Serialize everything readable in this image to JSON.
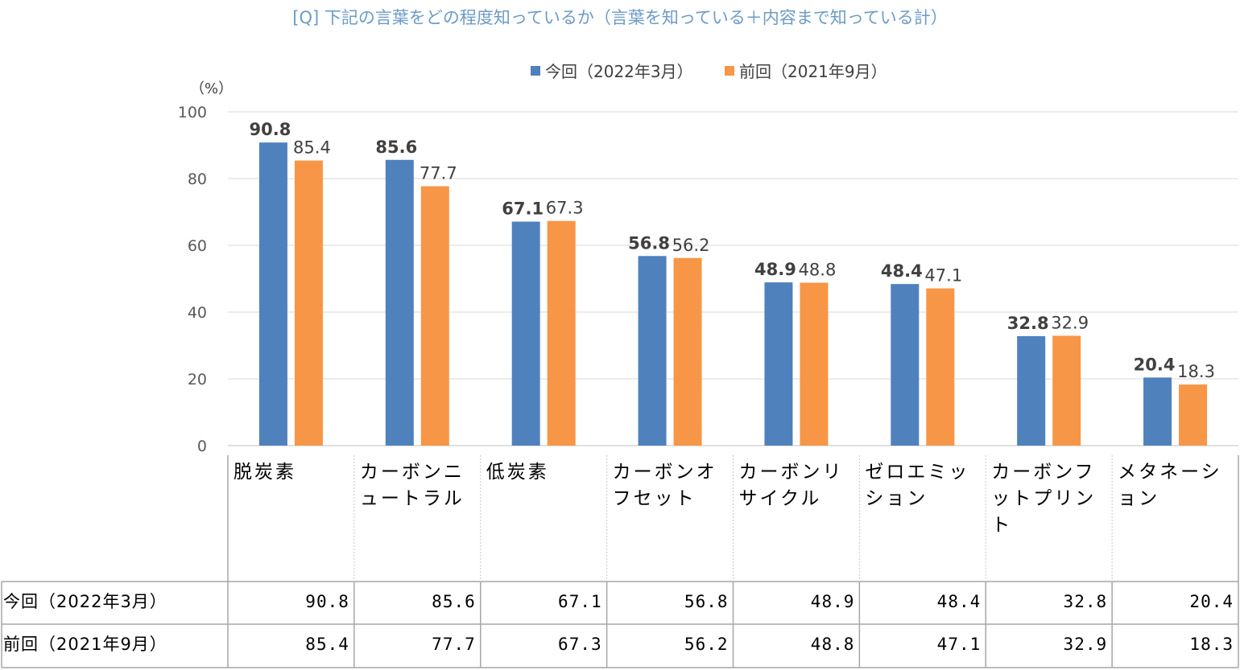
{
  "chart_data": {
    "type": "bar",
    "title": "[Q] 下記の言葉をどの程度知っているか（言葉を知っている＋内容まで知っている計）",
    "ylabel": "（%）",
    "ylim": [
      0,
      100
    ],
    "yticks": [
      0,
      20,
      40,
      60,
      80,
      100
    ],
    "grid": true,
    "legend_position": "top-center",
    "categories": [
      "脱炭素",
      "カーボンニュートラル",
      "低炭素",
      "カーボンオフセット",
      "カーボンリサイクル",
      "ゼロエミッション",
      "カーボンフットプリント",
      "メタネーション"
    ],
    "series": [
      {
        "name": "今回（2022年3月）",
        "table_name": "今回（2022年3月）",
        "color": "#4f81bd",
        "values": [
          90.8,
          85.6,
          67.1,
          56.8,
          48.9,
          48.4,
          32.8,
          20.4
        ],
        "value_texts": [
          "90.8",
          "85.6",
          "67.1",
          "56.8",
          "48.9",
          "48.4",
          "32.8",
          "20.4"
        ]
      },
      {
        "name": "前回（2021年9月）",
        "table_name": "前回（2021年9月）",
        "color": "#f79646",
        "values": [
          85.4,
          77.7,
          67.3,
          56.2,
          48.8,
          47.1,
          32.9,
          18.3
        ],
        "value_texts": [
          "85.4",
          "77.7",
          "67.3",
          "56.2",
          "48.8",
          "47.1",
          "32.9",
          "18.3"
        ]
      }
    ]
  },
  "colors": {
    "title": "#6b9bc7",
    "grid": "#d9d9d9",
    "axis": "#bfbfbf",
    "table_border": "#a6a6a6"
  }
}
